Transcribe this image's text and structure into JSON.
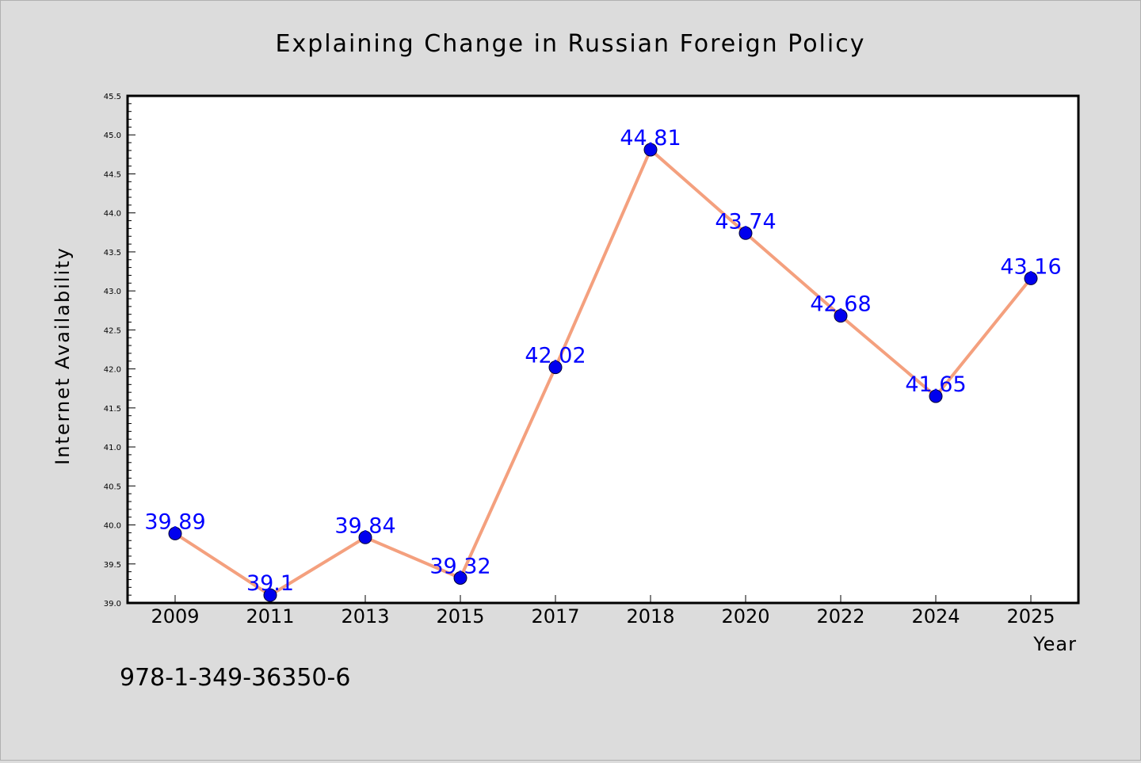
{
  "chart_data": {
    "type": "line",
    "title": "Explaining Change in Russian Foreign Policy",
    "xlabel": "Year",
    "ylabel": "Internet Availability",
    "categories": [
      "2009",
      "2011",
      "2013",
      "2015",
      "2017",
      "2018",
      "2020",
      "2022",
      "2024",
      "2025"
    ],
    "values": [
      39.89,
      39.1,
      39.84,
      39.32,
      42.02,
      44.81,
      43.74,
      42.68,
      41.65,
      43.16
    ],
    "data_labels": [
      "39.89",
      "39.1",
      "39.84",
      "39.32",
      "42.02",
      "44.81",
      "43.74",
      "42.68",
      "41.65",
      "43.16"
    ],
    "ylim": [
      39.0,
      45.5
    ],
    "yticks": [
      "39.0",
      "39.5",
      "40.0",
      "40.5",
      "41.0",
      "41.5",
      "42.0",
      "42.5",
      "43.0",
      "43.5",
      "44.0",
      "44.5",
      "45.0",
      "45.5"
    ],
    "grid": false,
    "legend": "none",
    "colors": {
      "line": "#f4a07e",
      "marker": "#0000ee",
      "label": "#0000ff",
      "plot_background": "#ffffff",
      "figure_background": "#dcdcdc"
    }
  },
  "annotation": "978-1-349-36350-6"
}
